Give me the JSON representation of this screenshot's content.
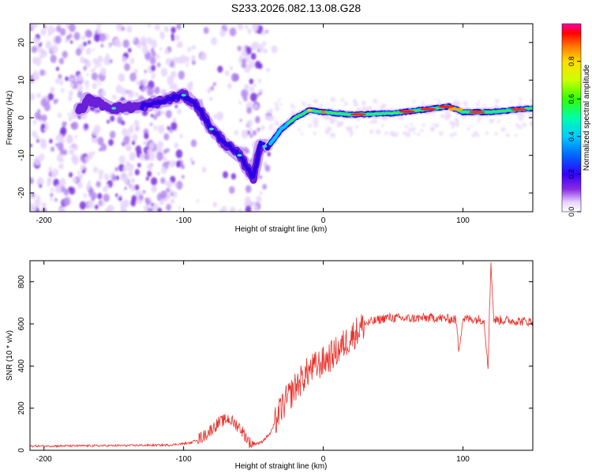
{
  "title": "S233.2026.082.13.08.G28",
  "colors": {
    "axis": "#000000",
    "snr_line": "#e8302a",
    "background": "#ffffff"
  },
  "chart_data": [
    {
      "type": "heatmap",
      "name": "spectrogram",
      "xlabel": "Height of straight line (km)",
      "ylabel": "Frequency (Hz)",
      "xlim": [
        -210,
        150
      ],
      "ylim": [
        -25,
        25
      ],
      "xticks": [
        -200,
        -100,
        0,
        100
      ],
      "yticks": [
        -20,
        -10,
        0,
        10,
        20
      ],
      "colorbar": {
        "label": "Normalized spectral amplitude",
        "range": [
          0,
          1
        ],
        "ticks": [
          "0.0",
          "0.2",
          "0.4",
          "0.6",
          "0.8"
        ]
      },
      "ridge": {
        "description_points_km_hz": [
          [
            -170,
            5
          ],
          [
            -150,
            2.5
          ],
          [
            -130,
            3
          ],
          [
            -100,
            6
          ],
          [
            -90,
            3
          ],
          [
            -80,
            -3
          ],
          [
            -70,
            -7
          ],
          [
            -60,
            -10
          ],
          [
            -50,
            -16
          ],
          [
            -45,
            -7
          ],
          [
            -40,
            -8
          ],
          [
            -30,
            -3
          ],
          [
            -20,
            0
          ],
          [
            -10,
            2
          ],
          [
            0,
            1.5
          ],
          [
            20,
            0.8
          ],
          [
            50,
            1.2
          ],
          [
            80,
            2.5
          ],
          [
            90,
            3
          ],
          [
            100,
            1.5
          ],
          [
            120,
            1.5
          ],
          [
            150,
            2.5
          ]
        ]
      }
    },
    {
      "type": "line",
      "name": "snr",
      "xlabel": "Height of straight line (km)",
      "ylabel": "SNR (10 * v/v)",
      "xlim": [
        -210,
        150
      ],
      "ylim": [
        0,
        900
      ],
      "xticks": [
        -200,
        -100,
        0,
        100
      ],
      "yticks": [
        0,
        200,
        400,
        600,
        800
      ],
      "series": [
        {
          "name": "SNR",
          "points": [
            [
              -210,
              20
            ],
            [
              -150,
              22
            ],
            [
              -110,
              25
            ],
            [
              -95,
              35
            ],
            [
              -85,
              70
            ],
            [
              -75,
              130
            ],
            [
              -68,
              150
            ],
            [
              -60,
              110
            ],
            [
              -52,
              30
            ],
            [
              -45,
              35
            ],
            [
              -38,
              80
            ],
            [
              -30,
              200
            ],
            [
              -20,
              300
            ],
            [
              -10,
              380
            ],
            [
              0,
              420
            ],
            [
              10,
              470
            ],
            [
              20,
              540
            ],
            [
              30,
              600
            ],
            [
              45,
              630
            ],
            [
              60,
              625
            ],
            [
              80,
              630
            ],
            [
              95,
              620
            ],
            [
              97,
              480
            ],
            [
              100,
              625
            ],
            [
              115,
              620
            ],
            [
              118,
              400
            ],
            [
              120,
              900
            ],
            [
              122,
              620
            ],
            [
              135,
              615
            ],
            [
              150,
              610
            ]
          ]
        }
      ]
    }
  ]
}
